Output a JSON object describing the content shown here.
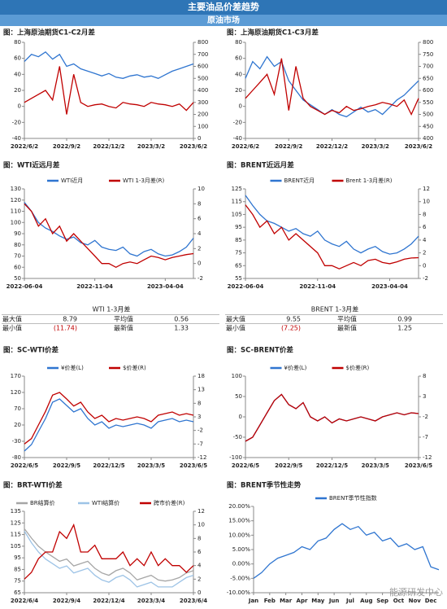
{
  "header": {
    "title": "主要油品价差趋势",
    "subtitle": "原油市场"
  },
  "watermark": "能源研发中心",
  "chart_data": [
    {
      "type": "line",
      "title": "图：上海原油期货C1-C2月差",
      "categories": [
        "2022/6/2",
        null,
        null,
        null,
        null,
        null,
        "2022/9/2",
        null,
        null,
        null,
        null,
        null,
        "2022/12/2",
        null,
        null,
        null,
        null,
        null,
        "2023/3/2",
        null,
        null,
        null,
        null,
        null,
        "2023/6/2"
      ],
      "ylim": [
        -40,
        80
      ],
      "yticks": [
        -40,
        -20,
        0,
        20,
        40,
        60,
        80
      ],
      "y2lim": [
        0,
        800
      ],
      "y2ticks": [
        0,
        100,
        200,
        300,
        400,
        500,
        600,
        700,
        800
      ],
      "series": [
        {
          "color": "#2f75d0",
          "axis": "y2",
          "values": [
            640,
            700,
            680,
            720,
            660,
            700,
            600,
            620,
            580,
            560,
            540,
            520,
            540,
            510,
            500,
            520,
            530,
            510,
            520,
            500,
            530,
            560,
            580,
            600,
            620
          ]
        },
        {
          "color": "#c00000",
          "values": [
            5,
            10,
            15,
            20,
            8,
            50,
            -10,
            40,
            5,
            0,
            2,
            3,
            0,
            -2,
            5,
            3,
            2,
            0,
            5,
            3,
            2,
            0,
            3,
            -5,
            5
          ]
        }
      ]
    },
    {
      "type": "line",
      "title": "图：上海原油期货C1-C3月差",
      "categories": [
        "2022/6/2",
        null,
        null,
        null,
        null,
        null,
        "2022/9/2",
        null,
        null,
        null,
        null,
        null,
        "2022/12/2",
        null,
        null,
        null,
        null,
        null,
        "2023/3/2",
        null,
        null,
        null,
        null,
        null,
        "2023/6/2"
      ],
      "ylim": [
        -40,
        80
      ],
      "yticks": [
        -40,
        -20,
        0,
        20,
        40,
        60,
        80
      ],
      "y2lim": [
        400,
        800
      ],
      "y2ticks": [
        400,
        450,
        500,
        550,
        600,
        650,
        700,
        750,
        800
      ],
      "series": [
        {
          "color": "#2f75d0",
          "axis": "y2",
          "values": [
            650,
            720,
            690,
            740,
            700,
            720,
            640,
            600,
            560,
            540,
            520,
            500,
            520,
            500,
            490,
            510,
            530,
            510,
            520,
            500,
            530,
            560,
            580,
            610,
            640
          ]
        },
        {
          "color": "#c00000",
          "values": [
            10,
            20,
            30,
            40,
            15,
            60,
            -5,
            50,
            10,
            0,
            -5,
            -10,
            -5,
            -8,
            0,
            -5,
            -3,
            0,
            2,
            5,
            3,
            0,
            8,
            -10,
            10
          ]
        }
      ]
    },
    {
      "type": "line",
      "title": "图：WTI近远月差",
      "categories": [
        "2022-06-04",
        null,
        null,
        null,
        null,
        null,
        null,
        null,
        null,
        null,
        "2022-11-04",
        null,
        null,
        null,
        null,
        null,
        null,
        null,
        null,
        null,
        "2023-04-04",
        null,
        null,
        null,
        null
      ],
      "ylim": [
        50,
        130
      ],
      "yticks": [
        50,
        60,
        70,
        80,
        90,
        100,
        110,
        120,
        130
      ],
      "y2lim": [
        -2,
        10
      ],
      "y2ticks": [
        -2,
        0,
        2,
        4,
        6,
        8,
        10
      ],
      "series": [
        {
          "name": "WTI近月",
          "color": "#2f75d0",
          "values": [
            118,
            110,
            100,
            95,
            92,
            88,
            85,
            87,
            82,
            80,
            84,
            78,
            76,
            75,
            78,
            72,
            70,
            74,
            76,
            72,
            70,
            71,
            74,
            78,
            86
          ]
        },
        {
          "name": "WTI 1-3月差(R)",
          "color": "#c00000",
          "axis": "y2",
          "values": [
            8,
            7,
            5,
            6,
            4,
            5,
            3,
            4,
            3,
            2,
            1,
            0,
            0,
            -0.5,
            0,
            0.2,
            0,
            0.5,
            1,
            0.8,
            0.5,
            0.8,
            1,
            1.2,
            1.33
          ]
        }
      ]
    },
    {
      "type": "line",
      "title": "图：BRENT近远月差",
      "categories": [
        "2022-06-04",
        null,
        null,
        null,
        null,
        null,
        null,
        null,
        null,
        null,
        "2022-11-04",
        null,
        null,
        null,
        null,
        null,
        null,
        null,
        null,
        null,
        "2023-04-04",
        null,
        null,
        null,
        null
      ],
      "ylim": [
        55,
        125
      ],
      "yticks": [
        55,
        65,
        75,
        85,
        95,
        105,
        115,
        125
      ],
      "y2lim": [
        -2,
        12
      ],
      "y2ticks": [
        -2,
        0,
        2,
        4,
        6,
        8,
        10,
        12
      ],
      "series": [
        {
          "name": "BRENT近月",
          "color": "#2f75d0",
          "values": [
            120,
            112,
            105,
            100,
            98,
            95,
            92,
            94,
            90,
            88,
            92,
            85,
            82,
            80,
            84,
            78,
            75,
            78,
            80,
            76,
            74,
            75,
            78,
            82,
            88
          ]
        },
        {
          "name": "Brent 1-3月差(R)",
          "color": "#c00000",
          "axis": "y2",
          "values": [
            9.5,
            8,
            6,
            7,
            5,
            6,
            4,
            5,
            4,
            3,
            2,
            0,
            0,
            -0.5,
            0,
            0.5,
            0,
            0.8,
            1,
            0.5,
            0.3,
            0.6,
            1,
            1.2,
            1.25
          ]
        }
      ]
    },
    {
      "type": "line",
      "title": "图：SC-WTI价差",
      "categories": [
        "2022/6/5",
        null,
        null,
        null,
        null,
        null,
        "2022/9/5",
        null,
        null,
        null,
        null,
        null,
        "2022/12/5",
        null,
        null,
        null,
        null,
        null,
        "2023/3/5",
        null,
        null,
        null,
        null,
        null,
        "2023/6/5"
      ],
      "ylim": [
        -80,
        170
      ],
      "yticks": [
        -80,
        -30,
        20,
        70,
        120,
        170
      ],
      "y2lim": [
        -12,
        18
      ],
      "y2ticks": [
        -12,
        -7,
        -2,
        3,
        8,
        13,
        18
      ],
      "series": [
        {
          "name": "¥价差(L)",
          "color": "#2f75d0",
          "values": [
            -60,
            -40,
            0,
            40,
            90,
            100,
            80,
            60,
            70,
            40,
            20,
            30,
            10,
            20,
            15,
            20,
            25,
            20,
            10,
            30,
            35,
            40,
            30,
            35,
            30
          ]
        },
        {
          "name": "$价差(R)",
          "color": "#c00000",
          "axis": "y2",
          "values": [
            -7,
            -5,
            0,
            5,
            11,
            12,
            9.6,
            7,
            8.4,
            4.8,
            2.4,
            3.6,
            1.2,
            2.4,
            1.8,
            2.4,
            3,
            2.4,
            1.2,
            3.6,
            4.2,
            4.8,
            3.6,
            4.2,
            3.6
          ]
        }
      ]
    },
    {
      "type": "line",
      "title": "图：SC-BRENT价差",
      "categories": [
        "2022/6/5",
        null,
        null,
        null,
        null,
        null,
        "2022/9/5",
        null,
        null,
        null,
        null,
        null,
        "2022/12/5",
        null,
        null,
        null,
        null,
        null,
        "2023/3/5",
        null,
        null,
        null,
        null,
        null,
        "2023/6/5"
      ],
      "ylim": [
        -100,
        100
      ],
      "yticks": [
        -100,
        -50,
        0,
        50,
        100
      ],
      "y2lim": [
        -12,
        8
      ],
      "y2ticks": [
        -12,
        -7,
        -2,
        3,
        8
      ],
      "series": [
        {
          "name": "¥价差(L)",
          "color": "#2f75d0",
          "values": [
            -60,
            -50,
            -20,
            10,
            40,
            55,
            30,
            20,
            35,
            0,
            -10,
            0,
            -15,
            -5,
            -10,
            -5,
            0,
            -5,
            -10,
            0,
            5,
            10,
            5,
            10,
            8
          ]
        },
        {
          "name": "$价差(R)",
          "color": "#c00000",
          "axis": "y2",
          "values": [
            -8,
            -7,
            -4,
            -1,
            2,
            3.5,
            1,
            0,
            1.5,
            -2,
            -3,
            -2,
            -3.5,
            -2.5,
            -3,
            -2.5,
            -2,
            -2.5,
            -3,
            -2,
            -1.5,
            -1,
            -1.5,
            -1,
            -1.2
          ]
        }
      ]
    },
    {
      "type": "line",
      "title": "图：BRT-WTI价差",
      "categories": [
        "2022/6/4",
        null,
        null,
        null,
        null,
        null,
        "2022/9/4",
        null,
        null,
        null,
        null,
        null,
        "2022/12/4",
        null,
        null,
        null,
        null,
        null,
        "2023/3/4",
        null,
        null,
        null,
        null,
        null,
        "2023/6/4"
      ],
      "ylim": [
        65,
        135
      ],
      "yticks": [
        65,
        75,
        85,
        95,
        105,
        115,
        125,
        135
      ],
      "y2lim": [
        0,
        12
      ],
      "y2ticks": [
        0,
        2,
        4,
        6,
        8,
        10,
        12
      ],
      "series": [
        {
          "name": "BR结算价",
          "color": "#a6a6a6",
          "values": [
            120,
            112,
            105,
            100,
            96,
            92,
            94,
            88,
            90,
            92,
            86,
            82,
            80,
            84,
            86,
            82,
            76,
            78,
            80,
            76,
            75,
            76,
            78,
            82,
            84
          ]
        },
        {
          "name": "WTI结算价",
          "color": "#9dc3e6",
          "values": [
            118,
            108,
            100,
            94,
            90,
            86,
            88,
            82,
            84,
            86,
            80,
            76,
            74,
            78,
            80,
            76,
            70,
            72,
            74,
            70,
            70,
            70,
            74,
            78,
            80
          ]
        },
        {
          "name": "跨市价差(R)",
          "color": "#c00000",
          "axis": "y2",
          "values": [
            2,
            3,
            5,
            6,
            6,
            9,
            8,
            10,
            6,
            6,
            7,
            5,
            5,
            5,
            6,
            4,
            5,
            4,
            6,
            4,
            5,
            4,
            4,
            3,
            4
          ]
        }
      ]
    },
    {
      "type": "line",
      "title": "图：BRENT季节性走势",
      "categories": [
        "Jan",
        null,
        "Feb",
        null,
        "Mar",
        null,
        "Apr",
        null,
        "May",
        null,
        "Jun",
        null,
        "Jul",
        null,
        "Aug",
        null,
        "Sep",
        null,
        "Oct",
        null,
        "Nov",
        null,
        "Dec",
        null
      ],
      "ylim": [
        -10,
        20
      ],
      "yticks": [
        {
          "value": -10,
          "label": "-10.00%"
        },
        {
          "value": -5,
          "label": "-5.00%"
        },
        {
          "value": 0,
          "label": "0.00%"
        },
        {
          "value": 5,
          "label": "5.00%"
        },
        {
          "value": 10,
          "label": "10.00%"
        },
        {
          "value": 15,
          "label": "15.00%"
        },
        {
          "value": 20,
          "label": "20.00%"
        }
      ],
      "series": [
        {
          "name": "BRENT季节性指数",
          "color": "#2f75d0",
          "values": [
            -5,
            -3,
            0,
            2,
            3,
            4,
            6,
            5,
            8,
            9,
            12,
            14,
            12,
            13,
            10,
            11,
            8,
            9,
            6,
            7,
            5,
            6,
            -1,
            -2
          ]
        }
      ]
    }
  ],
  "tables": [
    {
      "title": "WTI 1-3月差",
      "rows": [
        [
          "最大值",
          "8.79",
          "平均值",
          "0.56"
        ],
        [
          "最小值",
          "(11.74)",
          "最新值",
          "1.33"
        ]
      ]
    },
    {
      "title": "BRENT 1-3月差",
      "rows": [
        [
          "最大值",
          "9.55",
          "平均值",
          "0.99"
        ],
        [
          "最小值",
          "(7.25)",
          "最新值",
          "1.25"
        ]
      ]
    }
  ]
}
